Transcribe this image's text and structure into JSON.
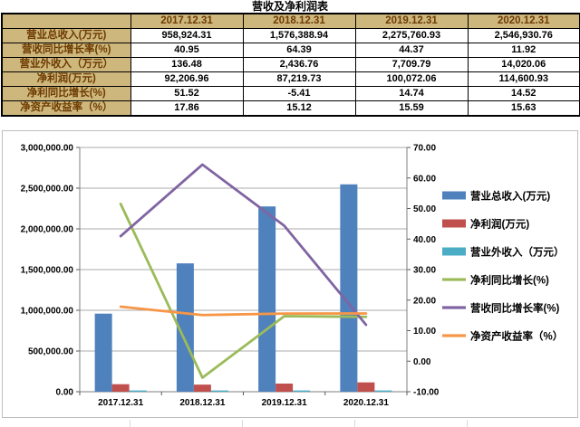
{
  "title": "营收及净利润表",
  "table": {
    "corner": "",
    "columns": [
      "2017.12.31",
      "2018.12.31",
      "2019.12.31",
      "2020.12.31"
    ],
    "rows": [
      {
        "key": "total-revenue",
        "label": "营业总收入(万元)",
        "values": [
          "958,924.31",
          "1,576,388.94",
          "2,275,760.93",
          "2,546,930.76"
        ]
      },
      {
        "key": "revenue-growth-rate",
        "label": "营收同比增长率(%)",
        "values": [
          "40.95",
          "64.39",
          "44.37",
          "11.92"
        ]
      },
      {
        "key": "non-operating-income",
        "label": "营业外收入（万元）",
        "values": [
          "136.48",
          "2,436.76",
          "7,709.79",
          "14,020.06"
        ]
      },
      {
        "key": "net-profit",
        "label": "净利润(万元)",
        "values": [
          "92,206.96",
          "87,219.73",
          "100,072.06",
          "114,600.93"
        ]
      },
      {
        "key": "net-profit-growth",
        "label": "净利同比增长(%)",
        "values": [
          "51.52",
          "-5.41",
          "14.74",
          "14.52"
        ]
      },
      {
        "key": "roe",
        "label": "净资产收益率（%）",
        "values": [
          "17.86",
          "15.12",
          "15.59",
          "15.63"
        ]
      }
    ],
    "colors": {
      "header_bg": "#CDB77D",
      "header_text": "#6E3B00",
      "border": "#000000"
    }
  },
  "chart_data": {
    "type": "combo-bar-line",
    "categories": [
      "2017.12.31",
      "2018.12.31",
      "2019.12.31",
      "2020.12.31"
    ],
    "series": [
      {
        "key": "total-revenue",
        "name": "营业总收入(万元)",
        "type": "bar",
        "axis": "left",
        "color": "#4F81BD",
        "values": [
          958924.31,
          1576388.94,
          2275760.93,
          2546930.76
        ]
      },
      {
        "key": "net-profit",
        "name": "净利润(万元)",
        "type": "bar",
        "axis": "left",
        "color": "#C0504D",
        "values": [
          92206.96,
          87219.73,
          100072.06,
          114600.93
        ]
      },
      {
        "key": "non-operating-income",
        "name": "营业外收入（万元）",
        "type": "bar",
        "axis": "left",
        "color": "#4BACC6",
        "values": [
          136.48,
          2436.76,
          7709.79,
          14020.06
        ]
      },
      {
        "key": "net-profit-growth",
        "name": "净利同比增长(%)",
        "type": "line",
        "axis": "right",
        "color": "#9BBB59",
        "values": [
          51.52,
          -5.41,
          14.74,
          14.52
        ]
      },
      {
        "key": "revenue-growth-rate",
        "name": "营收同比增长率(%)",
        "type": "line",
        "axis": "right",
        "color": "#8064A2",
        "values": [
          40.95,
          64.39,
          44.37,
          11.92
        ]
      },
      {
        "key": "roe",
        "name": "净资产收益率（%）",
        "type": "line",
        "axis": "right",
        "color": "#F79646",
        "values": [
          17.86,
          15.12,
          15.59,
          15.63
        ]
      }
    ],
    "left_axis": {
      "min": 0,
      "max": 3000000,
      "step": 500000,
      "labels": [
        "0.00",
        "500,000.00",
        "1,000,000.00",
        "1,500,000.00",
        "2,000,000.00",
        "2,500,000.00",
        "3,000,000.00"
      ]
    },
    "right_axis": {
      "min": -10,
      "max": 70,
      "step": 10,
      "labels": [
        "-10.00",
        "0.00",
        "10.00",
        "20.00",
        "30.00",
        "40.00",
        "50.00",
        "60.00",
        "70.00"
      ]
    },
    "legend_position": "right",
    "grid": true,
    "grid_color": "#ABABAB",
    "axis_color": "#7F7F7F",
    "tick_color": "#595959"
  }
}
